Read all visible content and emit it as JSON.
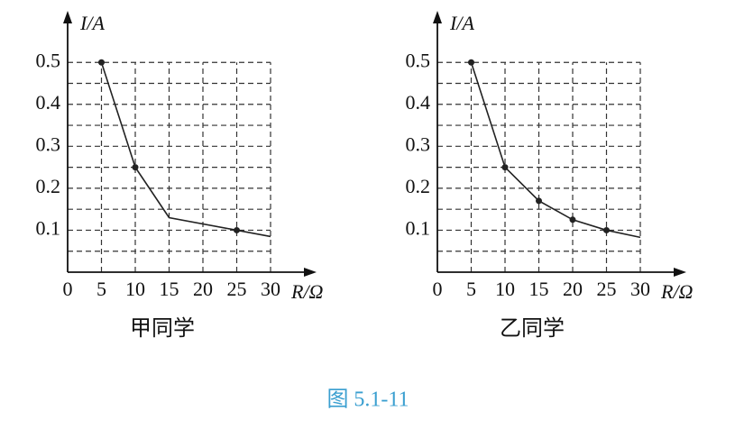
{
  "chart_data": [
    {
      "type": "line",
      "subtitle": "甲同学",
      "y_label": "I/A",
      "x_label": "R/Ω",
      "xlim": [
        0,
        36
      ],
      "ylim": [
        0,
        0.61
      ],
      "xticks": [
        0,
        5,
        10,
        15,
        20,
        25,
        30
      ],
      "yticks": [
        0.1,
        0.2,
        0.3,
        0.4,
        0.5
      ],
      "yminor": [
        0.05,
        0.15,
        0.25,
        0.35,
        0.45
      ],
      "grid": true,
      "color": "#222222",
      "series": [
        {
          "type": "line",
          "x": [
            5,
            10,
            15,
            25,
            30
          ],
          "values": [
            0.5,
            0.25,
            0.13,
            0.1,
            0.085
          ]
        },
        {
          "type": "scatter",
          "x": [
            5,
            10,
            25
          ],
          "values": [
            0.5,
            0.25,
            0.1
          ]
        }
      ]
    },
    {
      "type": "line",
      "subtitle": "乙同学",
      "y_label": "I/A",
      "x_label": "R/Ω",
      "xlim": [
        0,
        36
      ],
      "ylim": [
        0,
        0.61
      ],
      "xticks": [
        0,
        5,
        10,
        15,
        20,
        25,
        30
      ],
      "yticks": [
        0.1,
        0.2,
        0.3,
        0.4,
        0.5
      ],
      "yminor": [
        0.05,
        0.15,
        0.25,
        0.35,
        0.45
      ],
      "grid": true,
      "color": "#222222",
      "series": [
        {
          "type": "line",
          "x": [
            5,
            10,
            15,
            20,
            25,
            30
          ],
          "values": [
            0.5,
            0.25,
            0.17,
            0.125,
            0.1,
            0.083
          ]
        },
        {
          "type": "scatter",
          "x": [
            5,
            10,
            15,
            20,
            25
          ],
          "values": [
            0.5,
            0.25,
            0.17,
            0.125,
            0.1
          ]
        }
      ]
    }
  ],
  "caption": "图 5.1-11"
}
